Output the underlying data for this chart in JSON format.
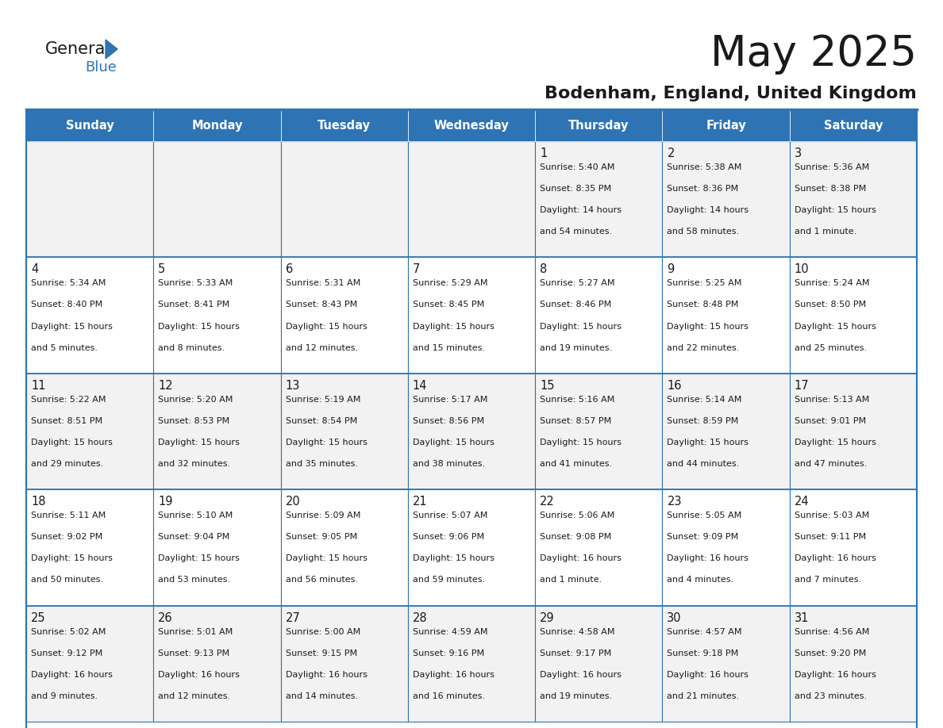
{
  "title": "May 2025",
  "subtitle": "Bodenham, England, United Kingdom",
  "days_of_week": [
    "Sunday",
    "Monday",
    "Tuesday",
    "Wednesday",
    "Thursday",
    "Friday",
    "Saturday"
  ],
  "header_bg": "#2E74B5",
  "header_text": "#FFFFFF",
  "cell_bg_odd": "#F2F2F2",
  "cell_bg_even": "#FFFFFF",
  "border_color": "#2E74B5",
  "text_color": "#1a1a1a",
  "logo_black": "#1a1a1a",
  "logo_blue": "#2E74B5",
  "calendar_data": [
    [
      null,
      null,
      null,
      null,
      {
        "day": 1,
        "sunrise": "5:40 AM",
        "sunset": "8:35 PM",
        "daylight_h": "14 hours",
        "daylight_m": "and 54 minutes."
      },
      {
        "day": 2,
        "sunrise": "5:38 AM",
        "sunset": "8:36 PM",
        "daylight_h": "14 hours",
        "daylight_m": "and 58 minutes."
      },
      {
        "day": 3,
        "sunrise": "5:36 AM",
        "sunset": "8:38 PM",
        "daylight_h": "15 hours",
        "daylight_m": "and 1 minute."
      }
    ],
    [
      {
        "day": 4,
        "sunrise": "5:34 AM",
        "sunset": "8:40 PM",
        "daylight_h": "15 hours",
        "daylight_m": "and 5 minutes."
      },
      {
        "day": 5,
        "sunrise": "5:33 AM",
        "sunset": "8:41 PM",
        "daylight_h": "15 hours",
        "daylight_m": "and 8 minutes."
      },
      {
        "day": 6,
        "sunrise": "5:31 AM",
        "sunset": "8:43 PM",
        "daylight_h": "15 hours",
        "daylight_m": "and 12 minutes."
      },
      {
        "day": 7,
        "sunrise": "5:29 AM",
        "sunset": "8:45 PM",
        "daylight_h": "15 hours",
        "daylight_m": "and 15 minutes."
      },
      {
        "day": 8,
        "sunrise": "5:27 AM",
        "sunset": "8:46 PM",
        "daylight_h": "15 hours",
        "daylight_m": "and 19 minutes."
      },
      {
        "day": 9,
        "sunrise": "5:25 AM",
        "sunset": "8:48 PM",
        "daylight_h": "15 hours",
        "daylight_m": "and 22 minutes."
      },
      {
        "day": 10,
        "sunrise": "5:24 AM",
        "sunset": "8:50 PM",
        "daylight_h": "15 hours",
        "daylight_m": "and 25 minutes."
      }
    ],
    [
      {
        "day": 11,
        "sunrise": "5:22 AM",
        "sunset": "8:51 PM",
        "daylight_h": "15 hours",
        "daylight_m": "and 29 minutes."
      },
      {
        "day": 12,
        "sunrise": "5:20 AM",
        "sunset": "8:53 PM",
        "daylight_h": "15 hours",
        "daylight_m": "and 32 minutes."
      },
      {
        "day": 13,
        "sunrise": "5:19 AM",
        "sunset": "8:54 PM",
        "daylight_h": "15 hours",
        "daylight_m": "and 35 minutes."
      },
      {
        "day": 14,
        "sunrise": "5:17 AM",
        "sunset": "8:56 PM",
        "daylight_h": "15 hours",
        "daylight_m": "and 38 minutes."
      },
      {
        "day": 15,
        "sunrise": "5:16 AM",
        "sunset": "8:57 PM",
        "daylight_h": "15 hours",
        "daylight_m": "and 41 minutes."
      },
      {
        "day": 16,
        "sunrise": "5:14 AM",
        "sunset": "8:59 PM",
        "daylight_h": "15 hours",
        "daylight_m": "and 44 minutes."
      },
      {
        "day": 17,
        "sunrise": "5:13 AM",
        "sunset": "9:01 PM",
        "daylight_h": "15 hours",
        "daylight_m": "and 47 minutes."
      }
    ],
    [
      {
        "day": 18,
        "sunrise": "5:11 AM",
        "sunset": "9:02 PM",
        "daylight_h": "15 hours",
        "daylight_m": "and 50 minutes."
      },
      {
        "day": 19,
        "sunrise": "5:10 AM",
        "sunset": "9:04 PM",
        "daylight_h": "15 hours",
        "daylight_m": "and 53 minutes."
      },
      {
        "day": 20,
        "sunrise": "5:09 AM",
        "sunset": "9:05 PM",
        "daylight_h": "15 hours",
        "daylight_m": "and 56 minutes."
      },
      {
        "day": 21,
        "sunrise": "5:07 AM",
        "sunset": "9:06 PM",
        "daylight_h": "15 hours",
        "daylight_m": "and 59 minutes."
      },
      {
        "day": 22,
        "sunrise": "5:06 AM",
        "sunset": "9:08 PM",
        "daylight_h": "16 hours",
        "daylight_m": "and 1 minute."
      },
      {
        "day": 23,
        "sunrise": "5:05 AM",
        "sunset": "9:09 PM",
        "daylight_h": "16 hours",
        "daylight_m": "and 4 minutes."
      },
      {
        "day": 24,
        "sunrise": "5:03 AM",
        "sunset": "9:11 PM",
        "daylight_h": "16 hours",
        "daylight_m": "and 7 minutes."
      }
    ],
    [
      {
        "day": 25,
        "sunrise": "5:02 AM",
        "sunset": "9:12 PM",
        "daylight_h": "16 hours",
        "daylight_m": "and 9 minutes."
      },
      {
        "day": 26,
        "sunrise": "5:01 AM",
        "sunset": "9:13 PM",
        "daylight_h": "16 hours",
        "daylight_m": "and 12 minutes."
      },
      {
        "day": 27,
        "sunrise": "5:00 AM",
        "sunset": "9:15 PM",
        "daylight_h": "16 hours",
        "daylight_m": "and 14 minutes."
      },
      {
        "day": 28,
        "sunrise": "4:59 AM",
        "sunset": "9:16 PM",
        "daylight_h": "16 hours",
        "daylight_m": "and 16 minutes."
      },
      {
        "day": 29,
        "sunrise": "4:58 AM",
        "sunset": "9:17 PM",
        "daylight_h": "16 hours",
        "daylight_m": "and 19 minutes."
      },
      {
        "day": 30,
        "sunrise": "4:57 AM",
        "sunset": "9:18 PM",
        "daylight_h": "16 hours",
        "daylight_m": "and 21 minutes."
      },
      {
        "day": 31,
        "sunrise": "4:56 AM",
        "sunset": "9:20 PM",
        "daylight_h": "16 hours",
        "daylight_m": "and 23 minutes."
      }
    ]
  ]
}
